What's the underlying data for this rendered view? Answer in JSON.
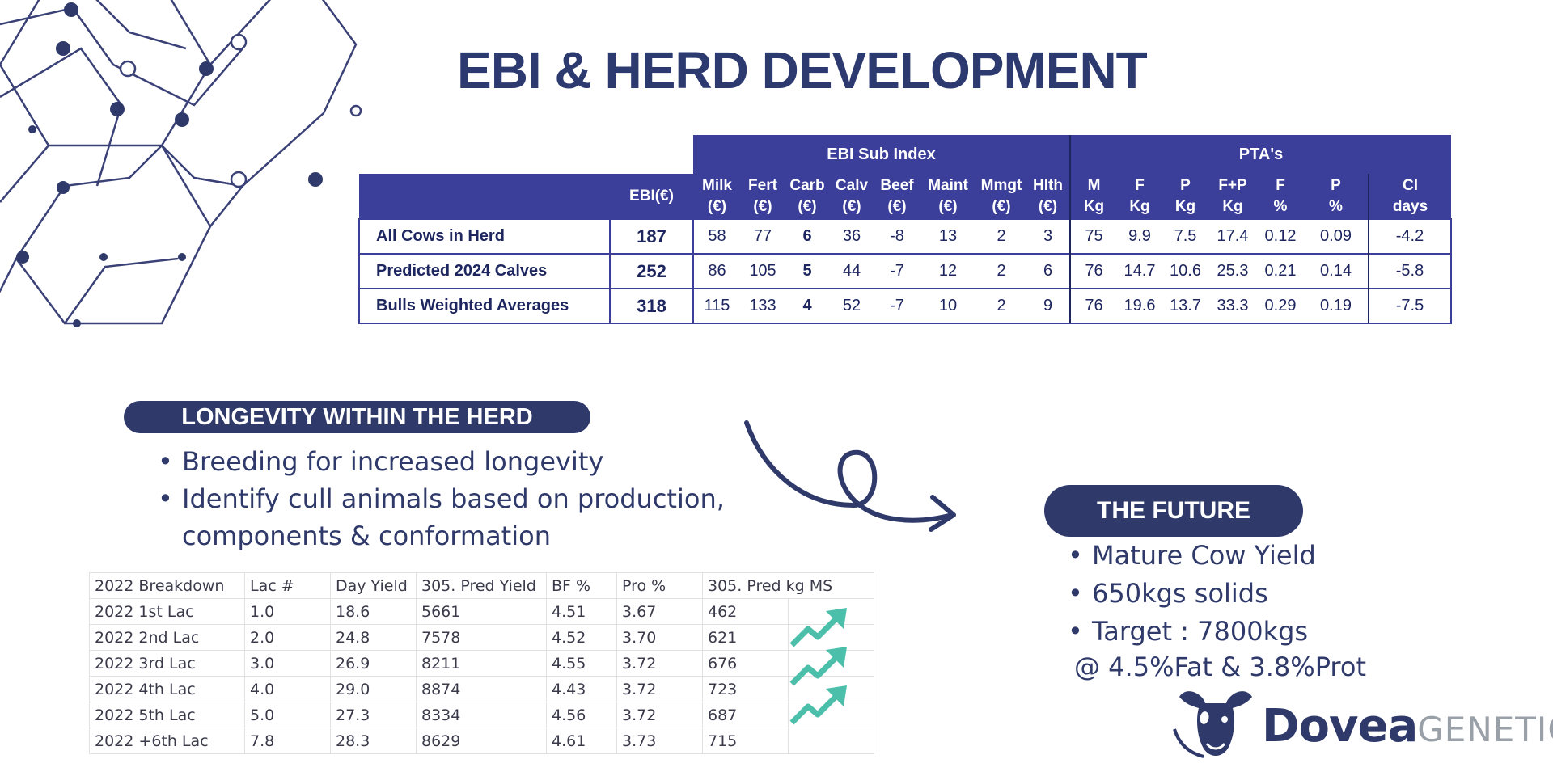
{
  "title": "EBI & HERD DEVELOPMENT",
  "ebi_table": {
    "group_headers": [
      "EBI Sub Index",
      "PTA's"
    ],
    "columns": [
      [
        "EBI(€)"
      ],
      [
        "Milk",
        "(€)"
      ],
      [
        "Fert",
        "(€)"
      ],
      [
        "Carb",
        "(€)"
      ],
      [
        "Calv",
        "(€)"
      ],
      [
        "Beef",
        "(€)"
      ],
      [
        "Maint",
        "(€)"
      ],
      [
        "Mmgt",
        "(€)"
      ],
      [
        "Hlth",
        "(€)"
      ],
      [
        "M",
        "Kg"
      ],
      [
        "F",
        "Kg"
      ],
      [
        "P",
        "Kg"
      ],
      [
        "F+P",
        "Kg"
      ],
      [
        "F",
        "%"
      ],
      [
        "P",
        "%"
      ],
      [
        "CI",
        "days"
      ]
    ],
    "rows": [
      {
        "label": "All Cows in Herd",
        "values": [
          "187",
          "58",
          "77",
          "6",
          "36",
          "-8",
          "13",
          "2",
          "3",
          "75",
          "9.9",
          "7.5",
          "17.4",
          "0.12",
          "0.09",
          "-4.2"
        ]
      },
      {
        "label": "Predicted 2024 Calves",
        "values": [
          "252",
          "86",
          "105",
          "5",
          "44",
          "-7",
          "12",
          "2",
          "6",
          "76",
          "14.7",
          "10.6",
          "25.3",
          "0.21",
          "0.14",
          "-5.8"
        ]
      },
      {
        "label": "Bulls Weighted Averages",
        "values": [
          "318",
          "115",
          "133",
          "4",
          "52",
          "-7",
          "10",
          "2",
          "9",
          "76",
          "19.6",
          "13.7",
          "33.3",
          "0.29",
          "0.19",
          "-7.5"
        ]
      }
    ]
  },
  "longevity": {
    "heading": "LONGEVITY WITHIN THE HERD",
    "bullets": [
      "Breeding for increased longevity",
      "Identify cull animals based on production,",
      "components & conformation"
    ]
  },
  "breakdown": {
    "headers": [
      "2022 Breakdown",
      "Lac #",
      "Day Yield",
      "305. Pred Yield",
      "BF %",
      "Pro %",
      "305. Pred kg MS",
      ""
    ],
    "rows": [
      [
        "2022 1st Lac",
        "1.0",
        "18.6",
        "5661",
        "4.51",
        "3.67",
        "462"
      ],
      [
        "2022 2nd Lac",
        "2.0",
        "24.8",
        "7578",
        "4.52",
        "3.70",
        "621"
      ],
      [
        "2022 3rd Lac",
        "3.0",
        "26.9",
        "8211",
        "4.55",
        "3.72",
        "676"
      ],
      [
        "2022 4th Lac",
        "4.0",
        "29.0",
        "8874",
        "4.43",
        "3.72",
        "723"
      ],
      [
        "2022 5th Lac",
        "5.0",
        "27.3",
        "8334",
        "4.56",
        "3.72",
        "687"
      ],
      [
        "2022 +6th Lac",
        "7.8",
        "28.3",
        "8629",
        "4.61",
        "3.73",
        "715"
      ]
    ]
  },
  "future": {
    "heading": "THE FUTURE",
    "bullets": [
      "Mature Cow Yield",
      "650kgs solids",
      "Target : 7800kgs"
    ],
    "note": "@ 4.5%Fat & 3.8%Prot"
  },
  "logo": {
    "bold": "Dovea",
    "light": "GENETICS"
  },
  "colors": {
    "navy": "#2f3a6b",
    "table_blue": "#3b3f9a",
    "trend_teal": "#4bbfa9"
  },
  "icons": [
    "hexagon-network-decoration",
    "curly-arrow-icon",
    "trend-up-icon",
    "cow-head-logo-icon"
  ]
}
